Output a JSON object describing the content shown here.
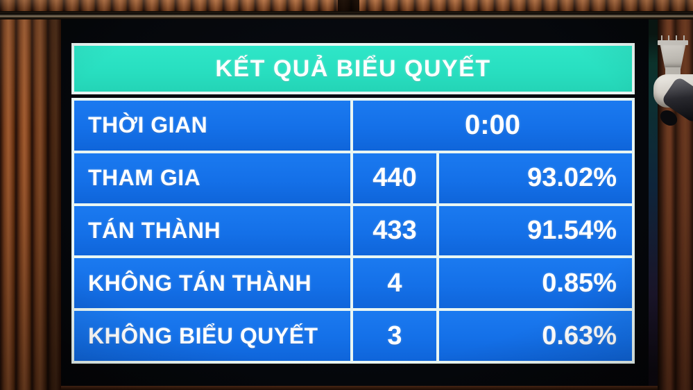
{
  "board": {
    "title": "KẾT QUẢ BIỂU QUYẾT",
    "time_row": {
      "label": "THỜI GIAN",
      "value": "0:00"
    },
    "rows": [
      {
        "label": "THAM GIA",
        "count": "440",
        "percent": "93.02%"
      },
      {
        "label": "TÁN THÀNH",
        "count": "433",
        "percent": "91.54%"
      },
      {
        "label": "KHÔNG TÁN THÀNH",
        "count": "4",
        "percent": "0.85%"
      },
      {
        "label": "KHÔNG BIỂU QUYẾT",
        "count": "3",
        "percent": "0.63%"
      }
    ]
  },
  "chart_data": {
    "type": "table",
    "title": "KẾT QUẢ BIỂU QUYẾT",
    "columns": [
      "label",
      "count",
      "percent"
    ],
    "rows": [
      {
        "label": "THỜI GIAN",
        "value": "0:00"
      },
      {
        "label": "THAM GIA",
        "count": 440,
        "percent": 93.02
      },
      {
        "label": "TÁN THÀNH",
        "count": 433,
        "percent": 91.54
      },
      {
        "label": "KHÔNG TÁN THÀNH",
        "count": 4,
        "percent": 0.85
      },
      {
        "label": "KHÔNG BIỂU QUYẾT",
        "count": 3,
        "percent": 0.63
      }
    ]
  },
  "colors": {
    "header_bg": "#28DFC0",
    "cell_bg": "#1471E9",
    "grid_line": "#E9F6F3",
    "text": "#FFFFFF",
    "bezel": "#05070B",
    "wood": "#8A4A22"
  }
}
